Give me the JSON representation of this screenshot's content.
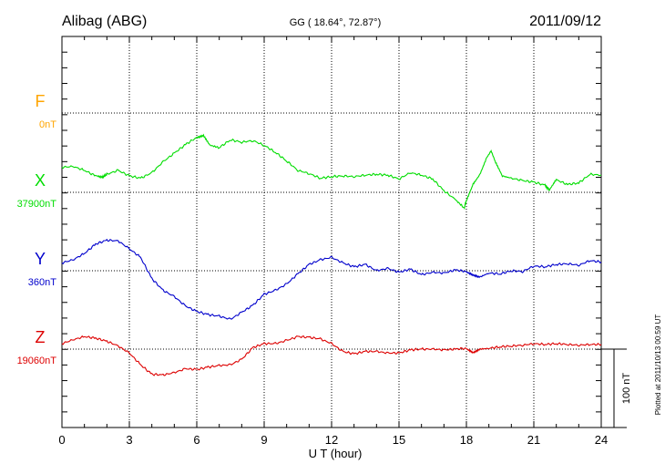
{
  "chart_data": {
    "type": "line",
    "title": "Alibag (ABG)",
    "coords": "GG ( 18.64°,  72.87°)",
    "date": "2011/09/12",
    "xlabel": "U T (hour)",
    "xlim": [
      0,
      24
    ],
    "xticks": [
      0,
      3,
      6,
      9,
      12,
      15,
      18,
      21,
      24
    ],
    "scale_label": "100 nT",
    "plotted_note": "Plotted at 2011/10/13 00:59 UT",
    "series": [
      {
        "name": "F",
        "baseline_label": "0nT",
        "color": "#FFA500",
        "x": [],
        "values": []
      },
      {
        "name": "X",
        "baseline_label": "37900nT",
        "color": "#00DD00",
        "x": [
          0,
          0.5,
          1,
          1.5,
          1.8,
          2,
          2.5,
          3,
          3.5,
          4,
          4.5,
          5,
          5.5,
          6,
          6.3,
          6.6,
          7,
          7.5,
          8,
          8.5,
          9,
          9.5,
          10,
          10.5,
          11,
          11.5,
          12,
          12.5,
          13,
          13.5,
          14,
          14.5,
          15,
          15.5,
          16,
          16.5,
          17,
          17.5,
          17.9,
          18,
          18.3,
          18.6,
          18.9,
          19.1,
          19.3,
          19.6,
          20,
          20.5,
          21,
          21.5,
          21.7,
          22,
          22.5,
          23,
          23.5,
          24
        ],
        "values": [
          32,
          33,
          28,
          21,
          19,
          23,
          28,
          21,
          18,
          25,
          39,
          50,
          61,
          70,
          73,
          60,
          57,
          67,
          64,
          66,
          60,
          51,
          40,
          28,
          24,
          18,
          20,
          21,
          20,
          22,
          23,
          22,
          17,
          25,
          22,
          17,
          2,
          -9,
          -20,
          -10,
          11,
          23,
          44,
          53,
          38,
          21,
          18,
          15,
          13,
          9,
          3,
          16,
          10,
          12,
          23,
          22
        ]
      },
      {
        "name": "Y",
        "baseline_label": "360nT",
        "color": "#0000CC",
        "x": [
          0,
          0.5,
          1,
          1.5,
          2,
          2.5,
          3,
          3.5,
          4,
          4.5,
          5,
          5.5,
          6,
          6.5,
          7,
          7.5,
          8,
          8.5,
          9,
          9.5,
          10,
          10.5,
          11,
          11.5,
          12,
          12.5,
          13,
          13.5,
          14,
          14.5,
          15,
          15.5,
          16,
          16.5,
          17,
          17.5,
          18,
          18.3,
          18.6,
          19,
          19.5,
          20,
          20.5,
          21,
          21.5,
          22,
          22.5,
          23,
          23.5,
          24
        ],
        "values": [
          10,
          14,
          22,
          34,
          39,
          38,
          28,
          17,
          -10,
          -25,
          -33,
          -45,
          -52,
          -56,
          -58,
          -62,
          -53,
          -44,
          -30,
          -25,
          -17,
          -4,
          8,
          14,
          17,
          10,
          5,
          8,
          0,
          3,
          -2,
          2,
          -5,
          -2,
          -3,
          1,
          -1,
          -5,
          -8,
          -3,
          -4,
          0,
          -1,
          6,
          5,
          8,
          9,
          7,
          13,
          11
        ]
      },
      {
        "name": "Z",
        "baseline_label": "19060nT",
        "color": "#DD0000",
        "x": [
          0,
          0.5,
          1,
          1.5,
          2,
          2.5,
          3,
          3.5,
          4,
          4.5,
          5,
          5.5,
          6,
          6.5,
          7,
          7.5,
          8,
          8.5,
          9,
          9.5,
          10,
          10.5,
          11,
          11.5,
          12,
          12.5,
          13,
          13.5,
          14,
          14.5,
          15,
          15.5,
          16,
          16.5,
          17,
          17.5,
          18,
          18.3,
          18.6,
          19,
          19.5,
          20,
          20.5,
          21,
          21.5,
          22,
          22.5,
          23,
          23.5,
          24
        ],
        "values": [
          7,
          12,
          16,
          14,
          10,
          4,
          -5,
          -20,
          -32,
          -33,
          -30,
          -25,
          -26,
          -23,
          -21,
          -20,
          -13,
          2,
          7,
          7,
          11,
          16,
          15,
          13,
          7,
          -3,
          -6,
          -3,
          -3,
          -5,
          -5,
          -1,
          0,
          0,
          -1,
          0,
          1,
          -4,
          0,
          1,
          3,
          4,
          5,
          7,
          6,
          7,
          6,
          5,
          6,
          6
        ]
      }
    ]
  }
}
